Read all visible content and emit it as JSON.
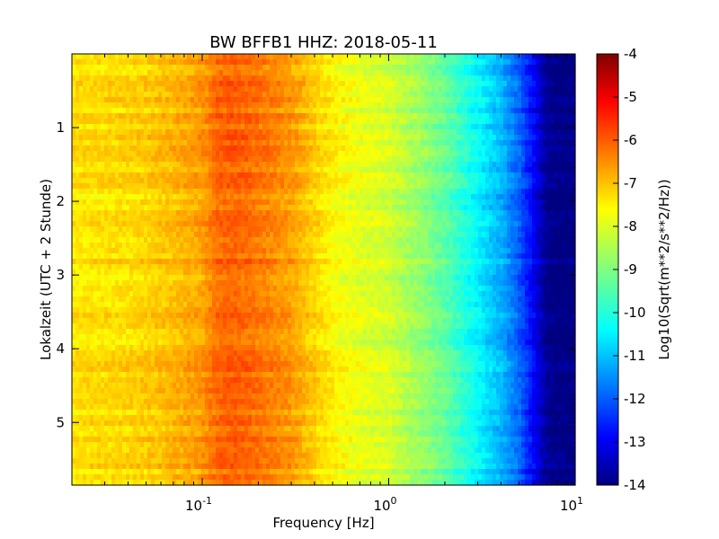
{
  "chart_data": {
    "type": "heatmap",
    "title": "BW BFFB1 HHZ: 2018-05-11",
    "xlabel": "Frequency [Hz]",
    "ylabel": "Lokalzeit (UTC + 2 Stunde)",
    "xscale": "log",
    "xlim": [
      0.02,
      10
    ],
    "ylim": [
      5.85,
      0
    ],
    "x_ticks": [
      {
        "value": 0.1,
        "base": "10",
        "exp": "-1"
      },
      {
        "value": 1,
        "base": "10",
        "exp": "0"
      },
      {
        "value": 10,
        "base": "10",
        "exp": "1"
      }
    ],
    "y_ticks": [
      {
        "value": 1,
        "label": "1"
      },
      {
        "value": 2,
        "label": "2"
      },
      {
        "value": 3,
        "label": "3"
      },
      {
        "value": 4,
        "label": "4"
      },
      {
        "value": 5,
        "label": "5"
      }
    ],
    "colorbar": {
      "label": "Log10(Sqrt(m**2/s**2/Hz))",
      "range": [
        -14,
        -4
      ],
      "colormap": "jet",
      "ticks": [
        "-4",
        "-5",
        "-6",
        "-7",
        "-8",
        "-9",
        "-10",
        "-11",
        "-12",
        "-13",
        "-14"
      ]
    },
    "spectrum_profile": {
      "frequency_hz": [
        0.02,
        0.04,
        0.06,
        0.1,
        0.12,
        0.15,
        0.2,
        0.3,
        0.4,
        0.5,
        0.7,
        1.0,
        1.5,
        2.0,
        3.0,
        4.0,
        5.0,
        6.0,
        7.0,
        8.0,
        10.0
      ],
      "level": [
        -7.5,
        -7.4,
        -7.2,
        -6.8,
        -6.3,
        -6.2,
        -6.4,
        -6.8,
        -7.3,
        -7.7,
        -8.0,
        -8.2,
        -8.8,
        -9.3,
        -10.3,
        -11.0,
        -11.8,
        -12.8,
        -13.8,
        -14,
        -14
      ]
    }
  }
}
